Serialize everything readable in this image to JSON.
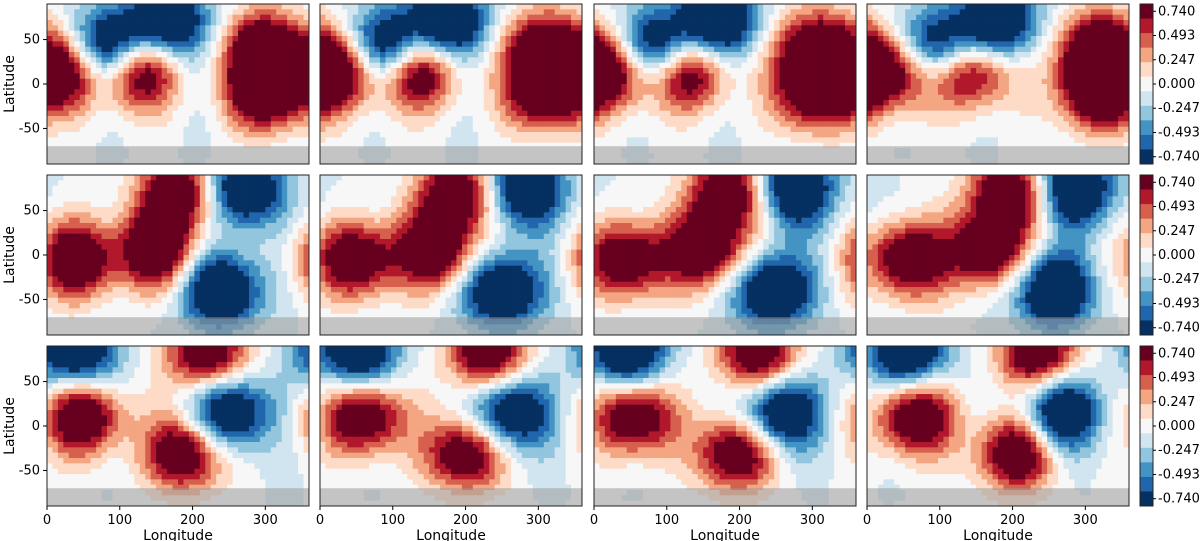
{
  "chart_data": {
    "type": "heatmap",
    "layout": {
      "rows": 3,
      "cols": 4
    },
    "xlabel": "Longitude",
    "ylabel": "Latitude",
    "xlim": [
      0,
      360
    ],
    "ylim": [
      -90,
      90
    ],
    "xticks": [
      0,
      100,
      200,
      300
    ],
    "yticks": [
      50,
      0,
      -50
    ],
    "masked_latitude_below": -70,
    "colorbar": {
      "ticks": [
        "0.740",
        "0.493",
        "0.247",
        "0.000",
        "-0.247",
        "-0.493",
        "-0.740"
      ],
      "levels": [
        0.74,
        0.617,
        0.493,
        0.37,
        0.247,
        0.123,
        0.0,
        -0.123,
        -0.247,
        -0.37,
        -0.493,
        -0.617,
        -0.74
      ],
      "colormap": [
        "#67001f",
        "#b2182b",
        "#d6604d",
        "#f4a582",
        "#fddbc7",
        "#f7f7f7",
        "#d1e5f0",
        "#92c5de",
        "#4393c3",
        "#2166ac",
        "#053061"
      ]
    },
    "rows": [
      {
        "extremes": [
          {
            "lon": 80,
            "lat": 40,
            "sign": "negative"
          },
          {
            "lon": 125,
            "lat": 15,
            "sign": "positive"
          },
          {
            "lon": 165,
            "lat": 70,
            "sign": "negative"
          },
          {
            "lon": 300,
            "lat": 40,
            "sign": "positive"
          },
          {
            "lon": 300,
            "lat": -10,
            "sign": "positive"
          },
          {
            "lon": 20,
            "lat": 15,
            "sign": "positive"
          }
        ]
      },
      {
        "extremes": [
          {
            "lon": 180,
            "lat": 70,
            "sign": "positive"
          },
          {
            "lon": 150,
            "lat": 5,
            "sign": "positive"
          },
          {
            "lon": 40,
            "lat": -5,
            "sign": "positive"
          },
          {
            "lon": 270,
            "lat": 75,
            "sign": "negative"
          },
          {
            "lon": 240,
            "lat": -40,
            "sign": "negative"
          }
        ]
      },
      {
        "extremes": [
          {
            "lon": 220,
            "lat": 82,
            "sign": "positive"
          },
          {
            "lon": 40,
            "lat": 85,
            "sign": "negative"
          },
          {
            "lon": 50,
            "lat": 10,
            "sign": "positive"
          },
          {
            "lon": 250,
            "lat": 15,
            "sign": "negative"
          },
          {
            "lon": 190,
            "lat": -30,
            "sign": "positive"
          }
        ]
      }
    ]
  }
}
